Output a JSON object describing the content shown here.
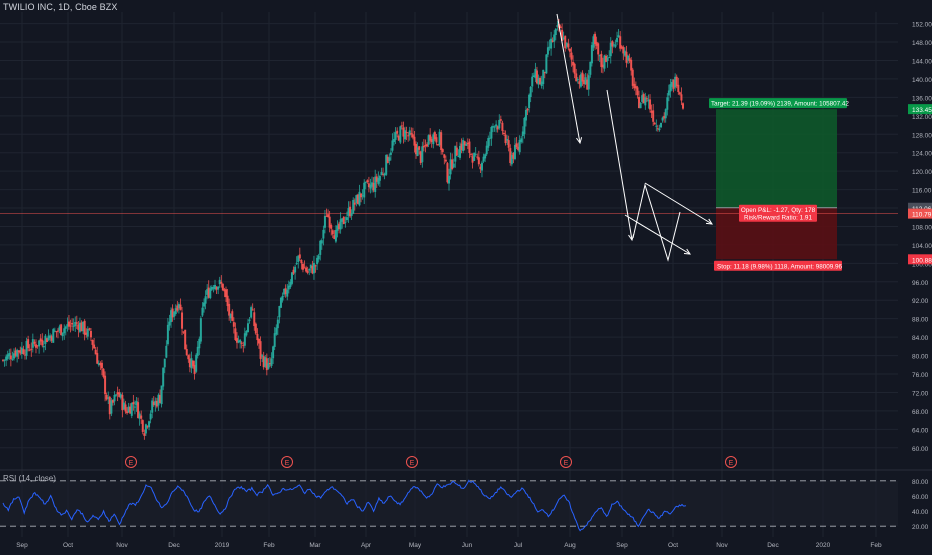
{
  "header": {
    "title": "TWILIO INC, 1D, Cboe BZX"
  },
  "rsi_panel": {
    "title": "RSI (14, close)"
  },
  "colors": {
    "background": "#131722",
    "grid": "#1f2430",
    "up": "#26a69a",
    "down": "#ef5350",
    "rsi_line": "#2962ff",
    "target_zone": "#0e5c2a",
    "stop_zone": "#5a0f14",
    "target_label": "#089949",
    "stop_label": "#f23645",
    "price_line": "#ef5350",
    "axis_text": "#b2b5be",
    "white": "#ffffff"
  },
  "chart_data": {
    "type": "candlestick",
    "title": "TWILIO INC, 1D, Cboe BZX",
    "y_axis": {
      "ylim": [
        58,
        153
      ],
      "ticks": [
        60.0,
        64.0,
        68.0,
        72.0,
        76.0,
        80.0,
        84.0,
        88.0,
        92.0,
        96.0,
        100.0,
        104.0,
        108.0,
        112.0,
        116.0,
        120.0,
        124.0,
        128.0,
        132.0,
        136.0,
        140.0,
        144.0,
        148.0,
        152.0
      ]
    },
    "x_axis": {
      "labels": [
        "Sep",
        "Oct",
        "Nov",
        "Dec",
        "2019",
        "Feb",
        "Mar",
        "Apr",
        "May",
        "Jun",
        "Jul",
        "Aug",
        "Sep",
        "Oct",
        "Nov",
        "Dec",
        "2020",
        "Feb"
      ]
    },
    "earnings_markers": [
      "E",
      "E",
      "E",
      "E",
      "E"
    ],
    "price_path_anchors": [
      [
        0,
        79
      ],
      [
        8,
        81
      ],
      [
        18,
        82
      ],
      [
        28,
        84
      ],
      [
        38,
        86
      ],
      [
        48,
        87
      ],
      [
        56,
        84
      ],
      [
        63,
        76
      ],
      [
        68,
        68
      ],
      [
        73,
        72
      ],
      [
        78,
        68
      ],
      [
        84,
        70
      ],
      [
        90,
        64
      ],
      [
        95,
        69
      ],
      [
        100,
        71
      ],
      [
        106,
        88
      ],
      [
        112,
        92
      ],
      [
        116,
        82
      ],
      [
        122,
        76
      ],
      [
        128,
        92
      ],
      [
        134,
        96
      ],
      [
        140,
        95
      ],
      [
        146,
        86
      ],
      [
        152,
        82
      ],
      [
        158,
        90
      ],
      [
        164,
        80
      ],
      [
        170,
        77
      ],
      [
        176,
        90
      ],
      [
        182,
        96
      ],
      [
        188,
        101
      ],
      [
        194,
        98
      ],
      [
        200,
        100
      ],
      [
        206,
        111
      ],
      [
        212,
        106
      ],
      [
        218,
        110
      ],
      [
        224,
        113
      ],
      [
        230,
        116
      ],
      [
        236,
        117
      ],
      [
        242,
        120
      ],
      [
        248,
        126
      ],
      [
        254,
        129
      ],
      [
        260,
        127
      ],
      [
        266,
        123
      ],
      [
        272,
        128
      ],
      [
        278,
        127
      ],
      [
        283,
        119
      ],
      [
        288,
        124
      ],
      [
        293,
        126
      ],
      [
        298,
        124
      ],
      [
        303,
        121
      ],
      [
        308,
        125
      ],
      [
        313,
        131
      ],
      [
        318,
        129
      ],
      [
        323,
        123
      ],
      [
        328,
        125
      ],
      [
        333,
        133
      ],
      [
        338,
        141
      ],
      [
        343,
        139
      ],
      [
        348,
        147
      ],
      [
        354,
        151
      ],
      [
        360,
        146
      ],
      [
        366,
        140
      ],
      [
        372,
        139
      ],
      [
        376,
        148
      ],
      [
        381,
        143
      ],
      [
        386,
        146
      ],
      [
        392,
        149
      ],
      [
        398,
        144
      ],
      [
        404,
        135
      ],
      [
        410,
        136
      ],
      [
        416,
        130
      ],
      [
        421,
        132
      ],
      [
        425,
        138
      ],
      [
        429,
        140
      ],
      [
        433,
        135
      ]
    ],
    "rsi": {
      "levels": [
        80.0,
        60.0,
        40.0,
        20.0
      ],
      "overbought": 80,
      "oversold": 20,
      "path_anchors": [
        [
          0,
          50
        ],
        [
          4,
          42
        ],
        [
          8,
          55
        ],
        [
          12,
          60
        ],
        [
          16,
          38
        ],
        [
          20,
          56
        ],
        [
          24,
          64
        ],
        [
          28,
          58
        ],
        [
          32,
          48
        ],
        [
          36,
          61
        ],
        [
          40,
          43
        ],
        [
          44,
          35
        ],
        [
          48,
          40
        ],
        [
          52,
          30
        ],
        [
          56,
          42
        ],
        [
          60,
          36
        ],
        [
          64,
          24
        ],
        [
          68,
          34
        ],
        [
          72,
          28
        ],
        [
          76,
          40
        ],
        [
          80,
          26
        ],
        [
          84,
          36
        ],
        [
          88,
          22
        ],
        [
          92,
          38
        ],
        [
          96,
          50
        ],
        [
          100,
          48
        ],
        [
          104,
          58
        ],
        [
          108,
          74
        ],
        [
          112,
          70
        ],
        [
          116,
          55
        ],
        [
          120,
          44
        ],
        [
          124,
          50
        ],
        [
          128,
          66
        ],
        [
          132,
          72
        ],
        [
          136,
          68
        ],
        [
          140,
          56
        ],
        [
          144,
          42
        ],
        [
          148,
          38
        ],
        [
          152,
          52
        ],
        [
          156,
          60
        ],
        [
          160,
          48
        ],
        [
          164,
          36
        ],
        [
          168,
          44
        ],
        [
          172,
          60
        ],
        [
          176,
          70
        ],
        [
          180,
          72
        ],
        [
          184,
          66
        ],
        [
          188,
          70
        ],
        [
          192,
          62
        ],
        [
          196,
          66
        ],
        [
          200,
          76
        ],
        [
          204,
          60
        ],
        [
          208,
          64
        ],
        [
          212,
          70
        ],
        [
          216,
          68
        ],
        [
          220,
          70
        ],
        [
          224,
          74
        ],
        [
          228,
          64
        ],
        [
          232,
          70
        ],
        [
          236,
          60
        ],
        [
          240,
          58
        ],
        [
          244,
          66
        ],
        [
          248,
          72
        ],
        [
          252,
          68
        ],
        [
          256,
          60
        ],
        [
          260,
          50
        ],
        [
          264,
          56
        ],
        [
          268,
          46
        ],
        [
          272,
          40
        ],
        [
          276,
          52
        ],
        [
          280,
          40
        ],
        [
          284,
          56
        ],
        [
          288,
          50
        ],
        [
          292,
          60
        ],
        [
          296,
          54
        ],
        [
          300,
          48
        ],
        [
          304,
          58
        ],
        [
          308,
          70
        ],
        [
          312,
          72
        ],
        [
          316,
          66
        ],
        [
          320,
          58
        ],
        [
          324,
          62
        ],
        [
          328,
          76
        ],
        [
          332,
          72
        ],
        [
          336,
          74
        ],
        [
          340,
          79
        ],
        [
          344,
          74
        ],
        [
          348,
          70
        ],
        [
          352,
          80
        ],
        [
          356,
          78
        ],
        [
          360,
          70
        ],
        [
          364,
          60
        ],
        [
          368,
          56
        ],
        [
          372,
          64
        ],
        [
          376,
          72
        ],
        [
          380,
          64
        ],
        [
          384,
          58
        ],
        [
          388,
          66
        ],
        [
          392,
          70
        ],
        [
          396,
          62
        ],
        [
          400,
          52
        ],
        [
          404,
          38
        ],
        [
          408,
          42
        ],
        [
          412,
          34
        ],
        [
          416,
          42
        ],
        [
          420,
          56
        ],
        [
          424,
          60
        ],
        [
          428,
          50
        ],
        [
          432,
          30
        ],
        [
          436,
          14
        ],
        [
          440,
          20
        ],
        [
          444,
          28
        ],
        [
          448,
          40
        ],
        [
          452,
          44
        ],
        [
          456,
          32
        ],
        [
          460,
          48
        ],
        [
          464,
          52
        ],
        [
          468,
          44
        ],
        [
          472,
          36
        ],
        [
          476,
          30
        ],
        [
          480,
          20
        ],
        [
          484,
          34
        ],
        [
          488,
          42
        ],
        [
          492,
          36
        ],
        [
          496,
          30
        ],
        [
          500,
          40
        ],
        [
          504,
          36
        ],
        [
          508,
          44
        ],
        [
          512,
          48
        ],
        [
          516,
          46
        ]
      ]
    }
  },
  "price_scale": {
    "current_price_label": "110.79",
    "entry_label": "112.06",
    "target_label": "133.45",
    "stop_label": "100.88",
    "entry_price": 112.06,
    "current_price": 110.79,
    "target_price": 133.45,
    "stop_price": 100.88
  },
  "position_tool": {
    "target_text": "Target: 21.39 (19.09%) 2139, Amount: 105807.42",
    "open_pl_text": "Open P&L: -1.27, Qty: 178",
    "risk_reward_text": "Risk/Reward Ratio: 1.91",
    "stop_text": "Stop: 11.18 (9.98%) 1118, Amount: 98009.96"
  }
}
